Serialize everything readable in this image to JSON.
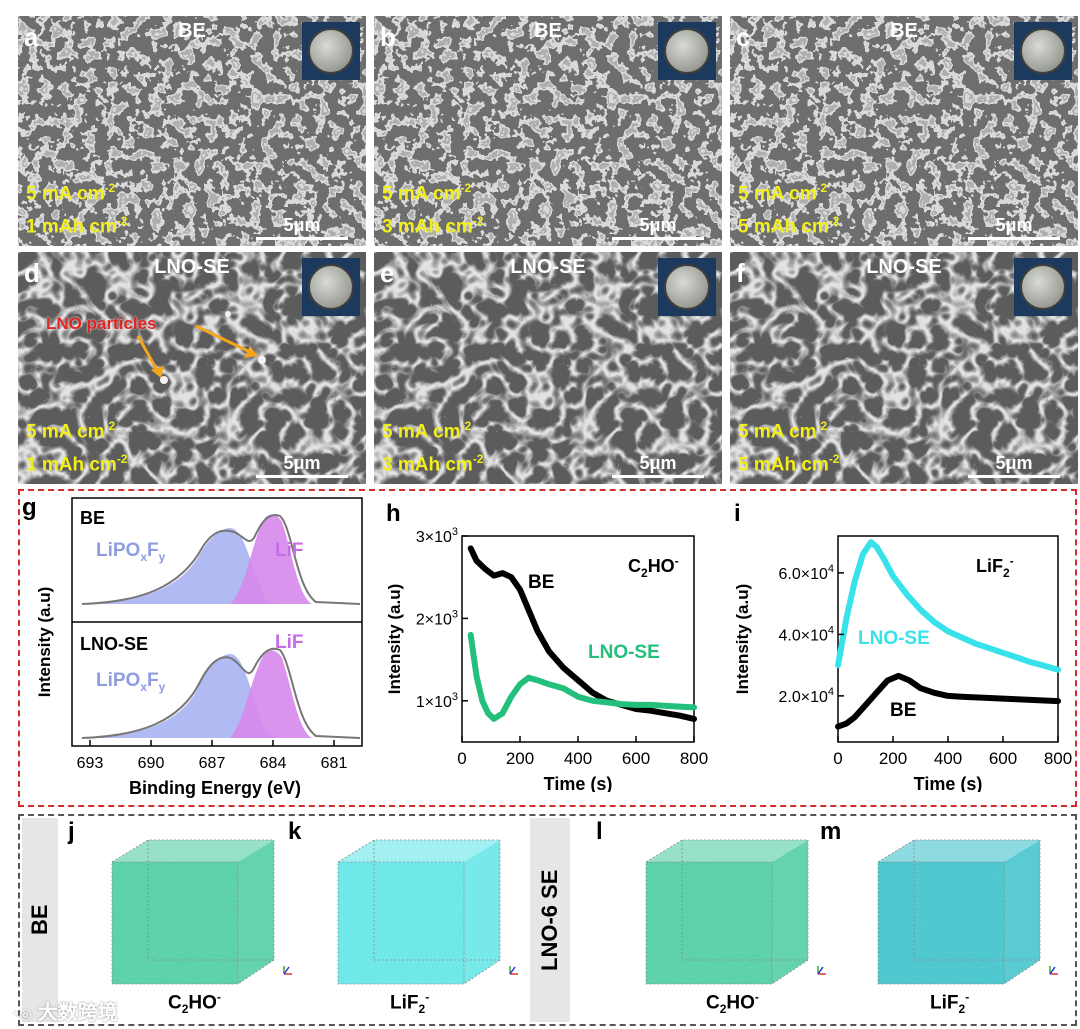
{
  "sem_panels": [
    {
      "id": "a",
      "title": "BE",
      "current": "5 mA cm",
      "capacity": "1 mAh cm",
      "sup": "-2",
      "scale": "5μm"
    },
    {
      "id": "b",
      "title": "BE",
      "current": "5 mA cm",
      "capacity": "3 mAh cm",
      "sup": "-2",
      "scale": "5μm"
    },
    {
      "id": "c",
      "title": "BE",
      "current": "5 mA cm",
      "capacity": "5 mAh cm",
      "sup": "-2",
      "scale": "5μm"
    },
    {
      "id": "d",
      "title": "LNO-SE",
      "current": "5 mA cm",
      "capacity": "1 mAh cm",
      "sup": "-2",
      "scale": "5μm",
      "annotation": "LNO particles"
    },
    {
      "id": "e",
      "title": "LNO-SE",
      "current": "5 mA cm",
      "capacity": "3 mAh cm",
      "sup": "-2",
      "scale": "5μm"
    },
    {
      "id": "f",
      "title": "LNO-SE",
      "current": "5 mA cm",
      "capacity": "5 mAh cm",
      "sup": "-2",
      "scale": "5μm"
    }
  ],
  "panel_g": {
    "label": "g",
    "xlabel": "Binding Energy (eV)",
    "ylabel": "Intensity (a.u)",
    "ticks": [
      "693",
      "690",
      "687",
      "684",
      "681"
    ],
    "top_title": "BE",
    "bottom_title": "LNO-SE",
    "peak1_main": "LiPO",
    "peak1_sub1": "x",
    "peak1_mid": "F",
    "peak1_sub2": "y",
    "peak2": "LiF",
    "colors": {
      "lipo": "#a3aef0",
      "lif": "#d688ec",
      "fit": "#777777"
    }
  },
  "chart_data": [
    {
      "type": "line",
      "label": "h",
      "title": "C",
      "title_sub": "2",
      "title_rest": "HO",
      "title_sup": "-",
      "xlabel": "Time (s)",
      "ylabel": "Intensity (a.u)",
      "xlim": [
        0,
        800
      ],
      "ylim": [
        500,
        3000
      ],
      "x_ticks": [
        "0",
        "200",
        "400",
        "600",
        "800"
      ],
      "y_tick_mantissa": [
        "1×10",
        "2×10",
        "3×10"
      ],
      "y_tick_exp": "3",
      "y_tick_values": [
        1000,
        2000,
        3000
      ],
      "series": [
        {
          "name": "BE",
          "color": "#000000",
          "x": [
            30,
            50,
            80,
            110,
            140,
            170,
            200,
            230,
            260,
            300,
            350,
            400,
            450,
            500,
            550,
            600,
            650,
            700,
            750,
            800
          ],
          "y": [
            2850,
            2700,
            2600,
            2520,
            2550,
            2500,
            2350,
            2100,
            1850,
            1600,
            1400,
            1250,
            1100,
            1000,
            950,
            900,
            880,
            850,
            820,
            780
          ]
        },
        {
          "name": "LNO-SE",
          "color": "#23c07c",
          "x": [
            30,
            50,
            70,
            90,
            110,
            140,
            170,
            200,
            230,
            260,
            300,
            350,
            400,
            450,
            500,
            550,
            600,
            650,
            700,
            750,
            800
          ],
          "y": [
            1800,
            1300,
            1000,
            850,
            780,
            850,
            1050,
            1200,
            1280,
            1250,
            1200,
            1150,
            1050,
            1000,
            980,
            960,
            950,
            950,
            940,
            930,
            920
          ]
        }
      ]
    },
    {
      "type": "line",
      "label": "i",
      "title": "LiF",
      "title_sub": "2",
      "title_sup": "-",
      "xlabel": "Time (s)",
      "ylabel": "Intensity (a.u)",
      "xlim": [
        0,
        800
      ],
      "ylim": [
        5000,
        72000
      ],
      "x_ticks": [
        "0",
        "200",
        "400",
        "600",
        "800"
      ],
      "y_tick_mantissa": [
        "2.0×10",
        "4.0×10",
        "6.0×10"
      ],
      "y_tick_exp": "4",
      "y_tick_values": [
        20000,
        40000,
        60000
      ],
      "series": [
        {
          "name": "LNO-SE",
          "color": "#37e2ea",
          "x": [
            0,
            30,
            60,
            90,
            120,
            140,
            170,
            200,
            250,
            300,
            350,
            400,
            450,
            500,
            550,
            600,
            650,
            700,
            750,
            800
          ],
          "y": [
            30000,
            45000,
            57000,
            66000,
            70000,
            68500,
            64000,
            59000,
            53000,
            48000,
            44000,
            41000,
            39000,
            37000,
            35500,
            34000,
            32500,
            31000,
            29800,
            28500
          ]
        },
        {
          "name": "BE",
          "color": "#000000",
          "x": [
            0,
            30,
            60,
            100,
            140,
            180,
            220,
            260,
            300,
            350,
            400,
            450,
            500,
            550,
            600,
            650,
            700,
            750,
            800
          ],
          "y": [
            10000,
            11000,
            13000,
            17000,
            21000,
            25000,
            26500,
            25000,
            22500,
            21000,
            20000,
            19700,
            19500,
            19300,
            19100,
            18900,
            18700,
            18500,
            18300
          ]
        }
      ]
    }
  ],
  "cubes": {
    "row_label_left": "BE",
    "row_label_right": "LNO-6 SE",
    "panels": [
      {
        "id": "j",
        "ion": "C",
        "sub": "2",
        "rest": "HO",
        "sup": "-",
        "color": "#3fc99a"
      },
      {
        "id": "k",
        "ion": "LiF",
        "sub": "2",
        "rest": "",
        "sup": "-",
        "color": "#55e3e6"
      },
      {
        "id": "l",
        "ion": "C",
        "sub": "2",
        "rest": "HO",
        "sup": "-",
        "color": "#3fc99a"
      },
      {
        "id": "m",
        "ion": "LiF",
        "sub": "2",
        "rest": "",
        "sup": "-",
        "color": "#2fbec6"
      }
    ]
  },
  "watermark": "大数跨境",
  "frame_color": "#d42b2b"
}
